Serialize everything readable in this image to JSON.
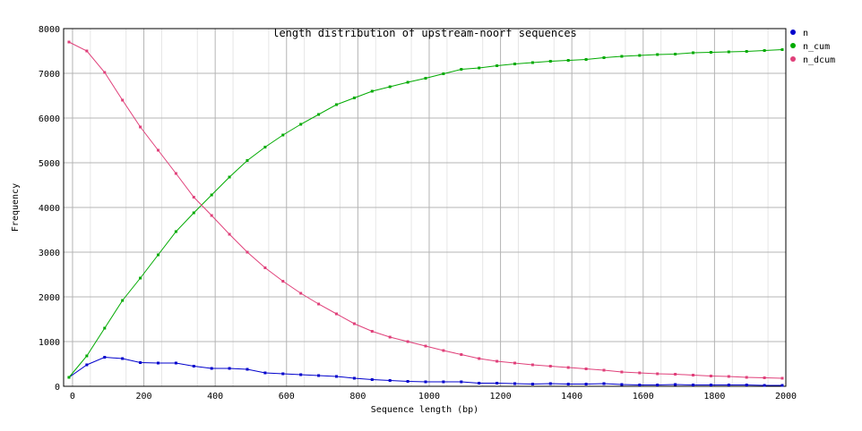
{
  "chart_data": {
    "type": "line",
    "title": "length distribution of upstream-noorf sequences",
    "xlabel": "Sequence length (bp)",
    "ylabel": "Frequency",
    "xlim": [
      -25,
      2000
    ],
    "ylim": [
      0,
      8000
    ],
    "x_ticks": [
      0,
      200,
      400,
      600,
      800,
      1000,
      1200,
      1400,
      1600,
      1800,
      2000
    ],
    "y_ticks": [
      0,
      1000,
      2000,
      3000,
      4000,
      5000,
      6000,
      7000,
      8000
    ],
    "grid": true,
    "legend_position": "top-right",
    "x": [
      -10,
      40,
      90,
      140,
      190,
      240,
      290,
      340,
      390,
      440,
      490,
      540,
      590,
      640,
      690,
      740,
      790,
      840,
      890,
      940,
      990,
      1040,
      1090,
      1140,
      1190,
      1240,
      1290,
      1340,
      1390,
      1440,
      1490,
      1540,
      1590,
      1640,
      1690,
      1740,
      1790,
      1840,
      1890,
      1940,
      1990
    ],
    "series": [
      {
        "name": "n",
        "color": "#0000cc",
        "values": [
          200,
          480,
          650,
          620,
          530,
          520,
          520,
          450,
          400,
          400,
          380,
          300,
          280,
          260,
          240,
          220,
          180,
          150,
          130,
          110,
          100,
          100,
          100,
          70,
          70,
          60,
          50,
          60,
          50,
          50,
          60,
          40,
          30,
          30,
          40,
          30,
          30,
          30,
          30,
          20,
          20
        ]
      },
      {
        "name": "n_cum",
        "color": "#00aa00",
        "values": [
          200,
          680,
          1300,
          1920,
          2420,
          2940,
          3460,
          3880,
          4280,
          4680,
          5050,
          5350,
          5620,
          5860,
          6080,
          6300,
          6450,
          6600,
          6700,
          6800,
          6890,
          6990,
          7090,
          7120,
          7170,
          7210,
          7240,
          7270,
          7290,
          7310,
          7350,
          7380,
          7400,
          7420,
          7430,
          7460,
          7470,
          7480,
          7490,
          7510,
          7530
        ]
      },
      {
        "name": "n_dcum",
        "color": "#e0407a",
        "values": [
          7700,
          7500,
          7020,
          6400,
          5800,
          5280,
          4760,
          4230,
          3820,
          3400,
          3000,
          2650,
          2350,
          2080,
          1840,
          1620,
          1400,
          1230,
          1100,
          1000,
          900,
          800,
          710,
          620,
          560,
          520,
          480,
          450,
          420,
          390,
          360,
          320,
          300,
          280,
          270,
          250,
          230,
          220,
          200,
          190,
          180
        ]
      }
    ]
  }
}
